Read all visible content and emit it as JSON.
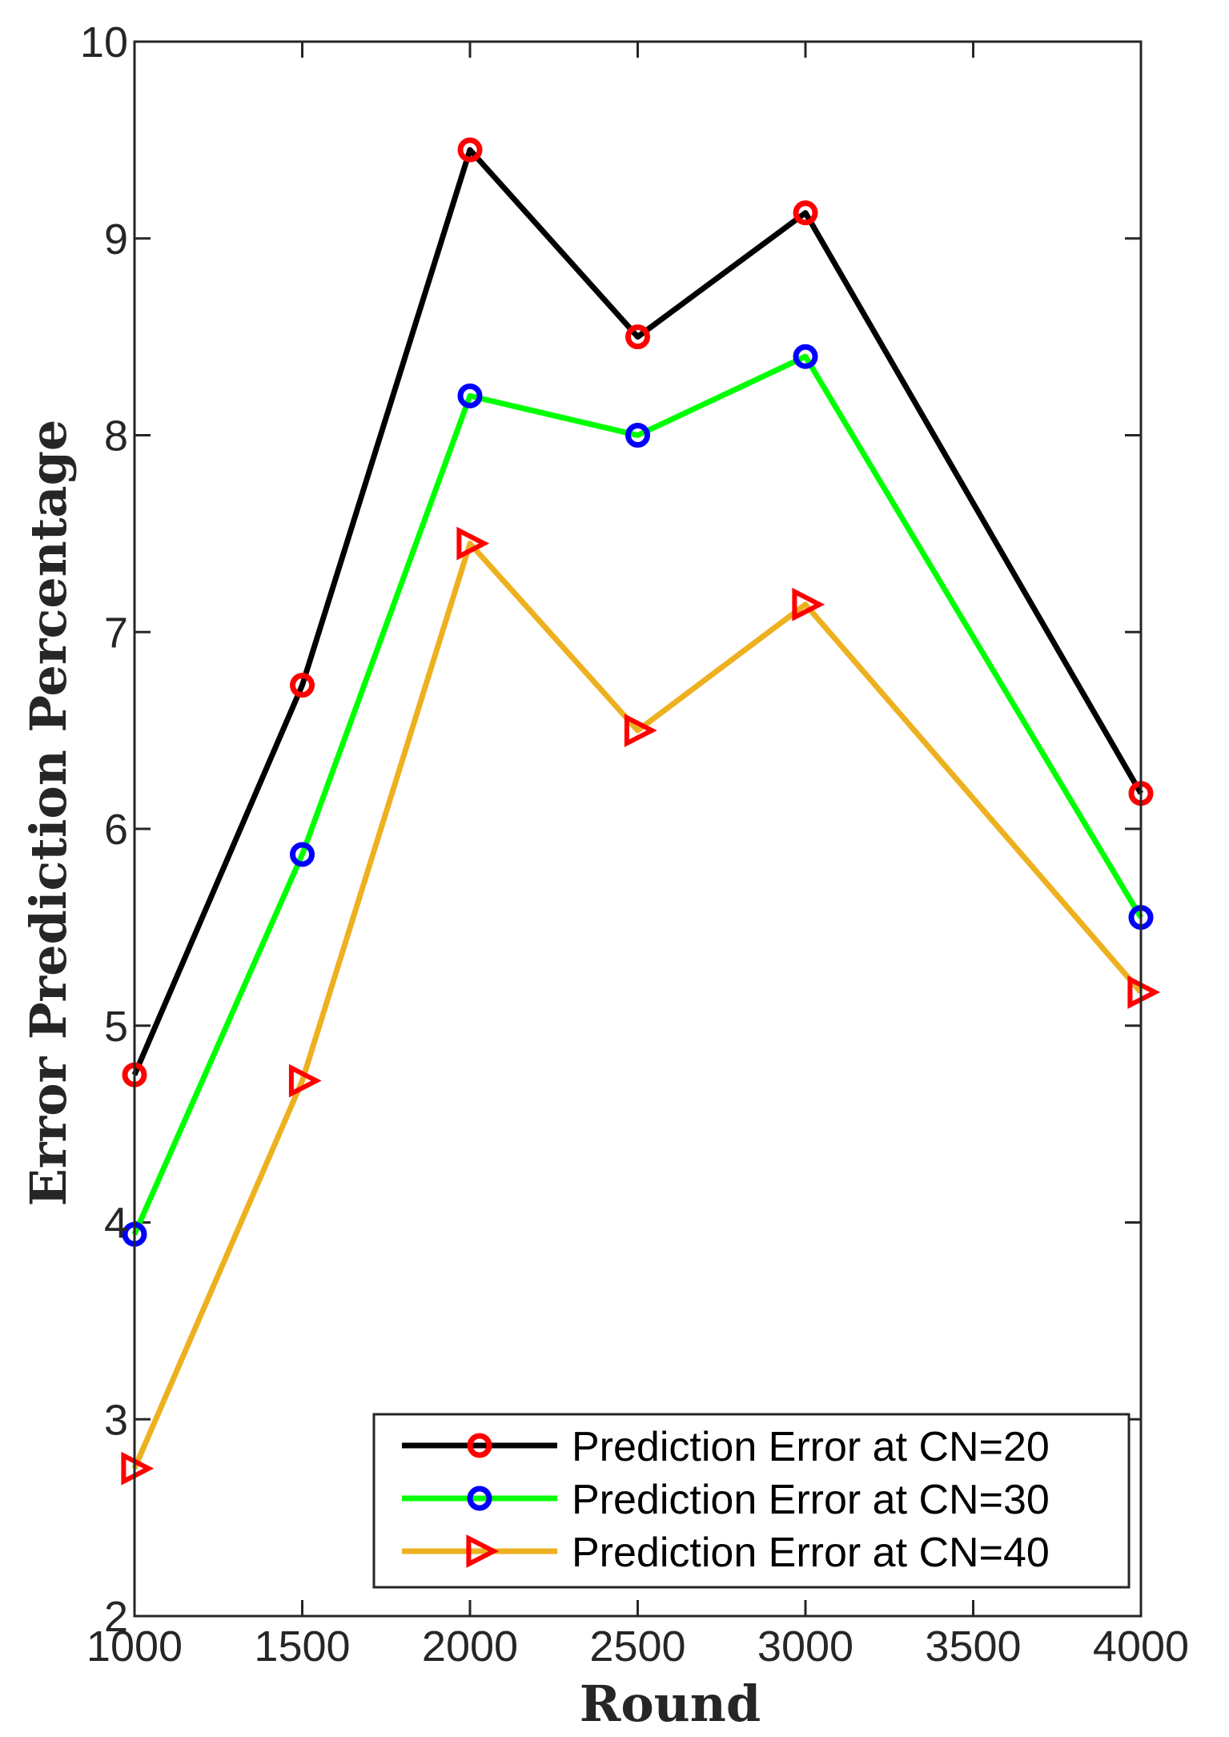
{
  "chart_data": {
    "type": "line",
    "title": "",
    "xlabel": "Round",
    "ylabel": "Error Prediction Percentage",
    "xlim": [
      1000,
      4000
    ],
    "ylim": [
      2,
      10
    ],
    "xticks": [
      1000,
      1500,
      2000,
      2500,
      3000,
      3500,
      4000
    ],
    "yticks": [
      2,
      3,
      4,
      5,
      6,
      7,
      8,
      9,
      10
    ],
    "x": [
      1000,
      1500,
      2000,
      2500,
      3000,
      4000
    ],
    "legend_position": "bottom-right",
    "series": [
      {
        "name": "Prediction Error at CN=20",
        "values": [
          4.75,
          6.73,
          9.45,
          8.5,
          9.13,
          6.18
        ],
        "line_color": "#000000",
        "marker": "circle",
        "marker_color": "#ff0000"
      },
      {
        "name": "Prediction Error at CN=30",
        "values": [
          3.94,
          5.87,
          8.2,
          8.0,
          8.4,
          5.55
        ],
        "line_color": "#00ff00",
        "marker": "circle",
        "marker_color": "#0000ff"
      },
      {
        "name": "Prediction Error at CN=40",
        "values": [
          2.75,
          4.72,
          7.45,
          6.5,
          7.14,
          5.17
        ],
        "line_color": "#edb120",
        "marker": "triangle-right",
        "marker_color": "#ff0000"
      }
    ]
  }
}
